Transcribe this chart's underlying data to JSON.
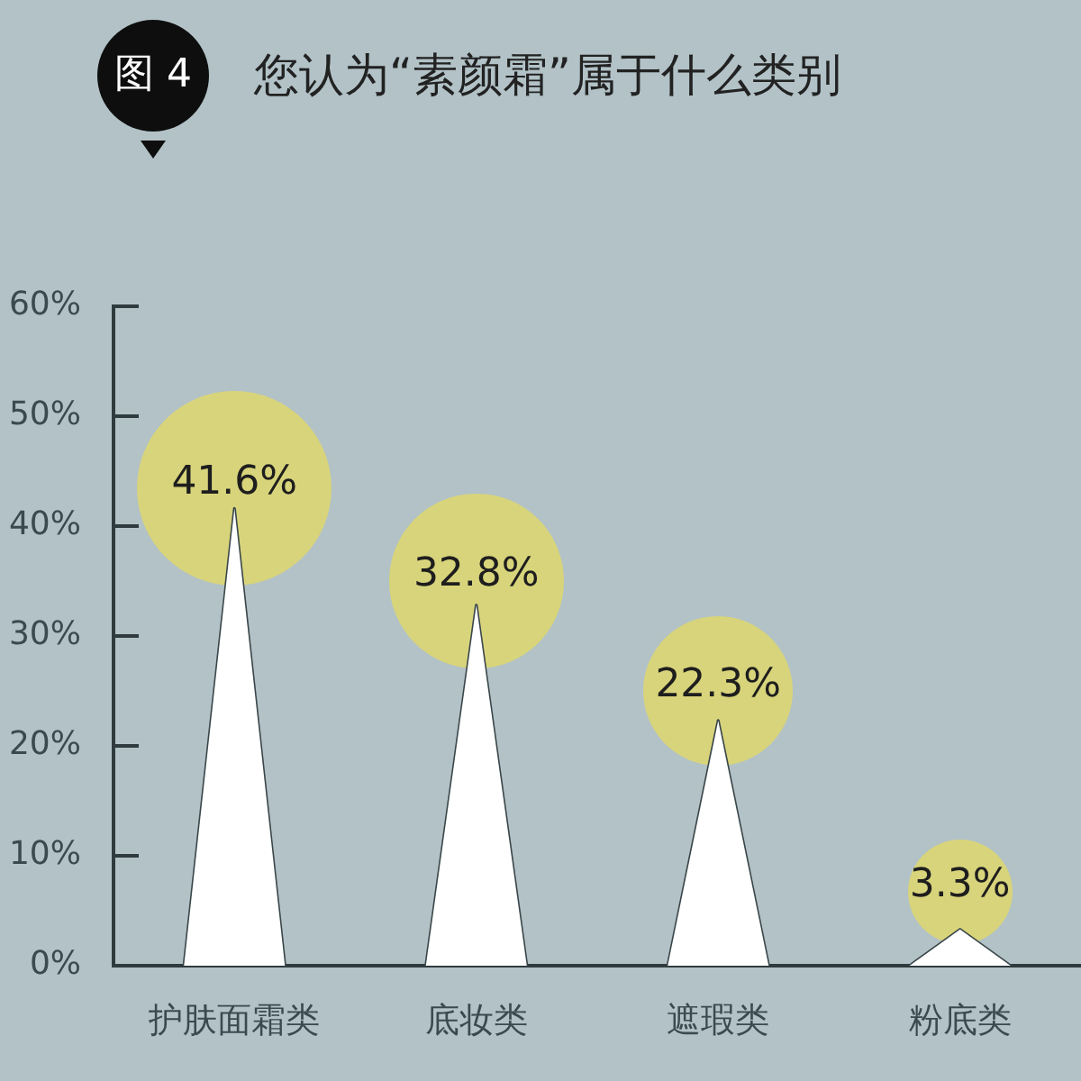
{
  "chart_data": {
    "type": "bar",
    "title": "您认为“素颜霜”属于什么类别",
    "annotations": [
      "图 4"
    ],
    "categories": [
      "护肤面霜类",
      "底妆类",
      "遮瑕类",
      "粉底类"
    ],
    "values": [
      41.6,
      32.8,
      22.3,
      3.3
    ],
    "color": "#ffffff",
    "value_labels": [
      "41.6%",
      "32.8%",
      "22.3%",
      "3.3%"
    ],
    "ylim": [
      0,
      60
    ],
    "yticks": [
      {
        "value": 0,
        "label": "0%"
      },
      {
        "value": 10,
        "label": "10%"
      },
      {
        "value": 20,
        "label": "20%"
      },
      {
        "value": 30,
        "label": "30%"
      },
      {
        "value": 40,
        "label": "40%"
      },
      {
        "value": 50,
        "label": "50%"
      },
      {
        "value": 60,
        "label": "60%"
      }
    ]
  }
}
